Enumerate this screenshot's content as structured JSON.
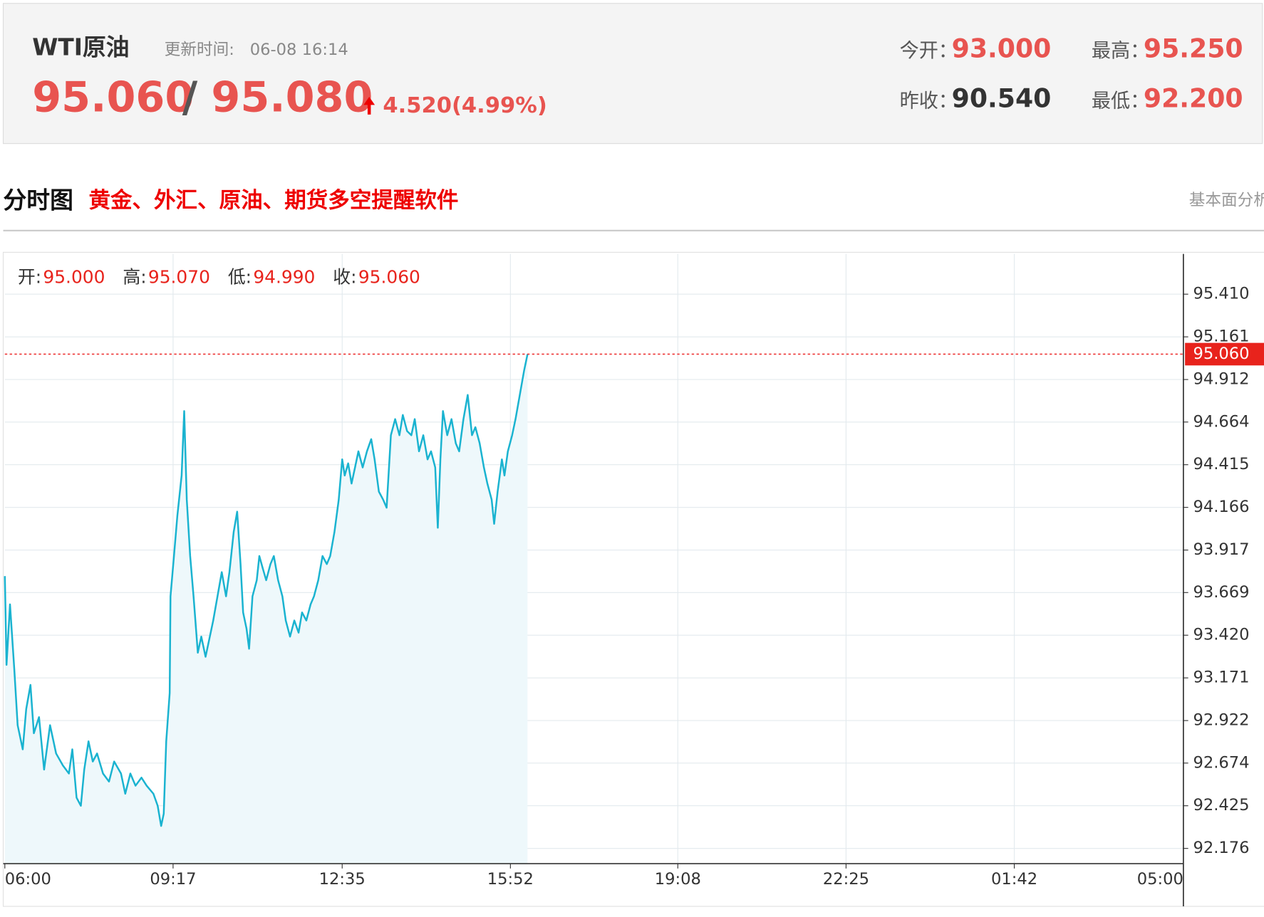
{
  "header": {
    "name": "WTI原油",
    "update_label": "更新时间:",
    "update_time": "06-08 16:14",
    "bid": "95.060",
    "sep": "/",
    "ask": "95.080",
    "change": "4.520(4.99%)",
    "stats": [
      {
        "label": "今开：",
        "value": "93.000"
      },
      {
        "label": "最高：",
        "value": "95.250"
      },
      {
        "label": "昨收：",
        "value": "90.540"
      },
      {
        "label": "最低：",
        "value": "92.200"
      }
    ]
  },
  "section": {
    "title": "分时图",
    "promo": "黄金、外汇、原油、期货多空提醒软件",
    "link": "基本面分析"
  },
  "chart_data": {
    "type": "line",
    "color": "#1ab3d0",
    "fill": "#eef8fb",
    "grid": true,
    "info": [
      {
        "label": "开:",
        "value": "95.000"
      },
      {
        "label": "高:",
        "value": "95.070"
      },
      {
        "label": "低:",
        "value": "94.990"
      },
      {
        "label": "收:",
        "value": "95.060"
      }
    ],
    "current": {
      "value": 95.06,
      "label": "95.060"
    },
    "xlim": [
      0,
      1380
    ],
    "xticks": [
      {
        "value": 0,
        "label": "06:00"
      },
      {
        "value": 197,
        "label": "09:17"
      },
      {
        "value": 395,
        "label": "12:35"
      },
      {
        "value": 592,
        "label": "15:52"
      },
      {
        "value": 788,
        "label": "19:08"
      },
      {
        "value": 985,
        "label": "22:25"
      },
      {
        "value": 1182,
        "label": "01:42"
      },
      {
        "value": 1380,
        "label": "05:00"
      }
    ],
    "ylim": [
      92.087,
      95.645
    ],
    "yticks": [
      92.176,
      92.425,
      92.674,
      92.922,
      93.171,
      {
        "value": 93.42,
        "label": "93.420"
      },
      93.669,
      93.917,
      94.166,
      94.415,
      94.664,
      94.912,
      95.161,
      {
        "value": 95.41,
        "label": "95.410"
      }
    ],
    "x": [
      0,
      2,
      6,
      11,
      15,
      21,
      25,
      30,
      34,
      40,
      46,
      53,
      60,
      68,
      75,
      79,
      84,
      89,
      93,
      98,
      103,
      108,
      115,
      122,
      128,
      136,
      141,
      147,
      153,
      160,
      166,
      174,
      179,
      183,
      186,
      189,
      193,
      194,
      198,
      202,
      207,
      210,
      213,
      217,
      221,
      226,
      230,
      235,
      240,
      244,
      249,
      254,
      259,
      263,
      268,
      272,
      276,
      279,
      283,
      286,
      290,
      295,
      298,
      302,
      306,
      311,
      315,
      320,
      325,
      329,
      334,
      339,
      344,
      348,
      353,
      358,
      362,
      367,
      372,
      377,
      381,
      386,
      391,
      395,
      398,
      402,
      406,
      410,
      414,
      419,
      424,
      429,
      433,
      438,
      443,
      447,
      452,
      457,
      462,
      466,
      471,
      476,
      480,
      485,
      490,
      495,
      499,
      504,
      507,
      510,
      513,
      518,
      523,
      528,
      532,
      537,
      542,
      547,
      551,
      556,
      561,
      565,
      570,
      573,
      577,
      582,
      585,
      589,
      594,
      598,
      603,
      608,
      612
    ],
    "values": [
      93.765,
      93.247,
      93.6,
      93.224,
      92.895,
      92.754,
      92.989,
      93.13,
      92.848,
      92.942,
      92.636,
      92.895,
      92.73,
      92.66,
      92.613,
      92.754,
      92.472,
      92.425,
      92.636,
      92.801,
      92.683,
      92.73,
      92.613,
      92.566,
      92.683,
      92.613,
      92.495,
      92.613,
      92.542,
      92.589,
      92.542,
      92.495,
      92.425,
      92.307,
      92.378,
      92.801,
      93.083,
      93.647,
      93.882,
      94.117,
      94.352,
      94.728,
      94.211,
      93.882,
      93.647,
      93.318,
      93.412,
      93.294,
      93.412,
      93.506,
      93.647,
      93.788,
      93.647,
      93.788,
      94.023,
      94.141,
      93.835,
      93.553,
      93.459,
      93.341,
      93.647,
      93.741,
      93.882,
      93.811,
      93.741,
      93.835,
      93.882,
      93.741,
      93.647,
      93.506,
      93.412,
      93.506,
      93.435,
      93.553,
      93.506,
      93.6,
      93.647,
      93.741,
      93.882,
      93.835,
      93.882,
      94.023,
      94.211,
      94.446,
      94.352,
      94.423,
      94.305,
      94.399,
      94.493,
      94.399,
      94.493,
      94.564,
      94.446,
      94.258,
      94.211,
      94.164,
      94.587,
      94.681,
      94.587,
      94.705,
      94.611,
      94.587,
      94.681,
      94.493,
      94.587,
      94.446,
      94.493,
      94.399,
      94.047,
      94.446,
      94.728,
      94.587,
      94.681,
      94.54,
      94.493,
      94.681,
      94.822,
      94.587,
      94.634,
      94.54,
      94.399,
      94.305,
      94.211,
      94.07,
      94.258,
      94.446,
      94.352,
      94.493,
      94.587,
      94.681,
      94.822,
      94.963,
      95.06
    ]
  }
}
